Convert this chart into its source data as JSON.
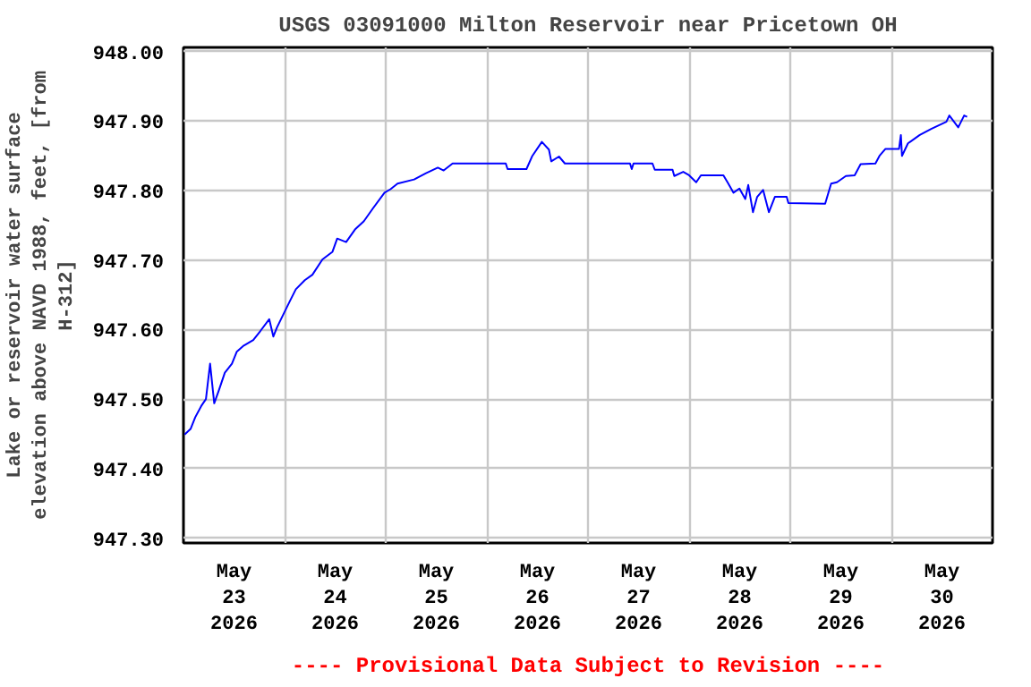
{
  "chart_data": {
    "type": "line",
    "title": "USGS 03091000 Milton Reservoir near Pricetown OH",
    "ylabel": "Lake or reservoir water surface\nelevation above NAVD 1988, feet, [from\nH-312]",
    "annotations": [
      "---- Provisional Data Subject to Revision ----"
    ],
    "xlim": [
      "2026-05-23T00:00",
      "2026-05-31T00:00"
    ],
    "xticks": [
      {
        "value": "2026-05-23T00:00",
        "label": null
      },
      {
        "value": "2026-05-23T12:00",
        "label": "May\n23\n2026"
      },
      {
        "value": "2026-05-24T00:00",
        "label": null
      },
      {
        "value": "2026-05-24T12:00",
        "label": "May\n24\n2026"
      },
      {
        "value": "2026-05-25T00:00",
        "label": null
      },
      {
        "value": "2026-05-25T12:00",
        "label": "May\n25\n2026"
      },
      {
        "value": "2026-05-26T00:00",
        "label": null
      },
      {
        "value": "2026-05-26T12:00",
        "label": "May\n26\n2026"
      },
      {
        "value": "2026-05-27T00:00",
        "label": null
      },
      {
        "value": "2026-05-27T12:00",
        "label": "May\n27\n2026"
      },
      {
        "value": "2026-05-28T00:00",
        "label": null
      },
      {
        "value": "2026-05-28T12:00",
        "label": "May\n28\n2026"
      },
      {
        "value": "2026-05-29T00:00",
        "label": null
      },
      {
        "value": "2026-05-29T12:00",
        "label": "May\n29\n2026"
      },
      {
        "value": "2026-05-30T00:00",
        "label": null
      },
      {
        "value": "2026-05-30T12:00",
        "label": "May\n30\n2026"
      },
      {
        "value": "2026-05-31T00:00",
        "label": null
      }
    ],
    "ylim": [
      947.293,
      948.006
    ],
    "yticks": [
      {
        "value": 947.3,
        "label": "947.30"
      },
      {
        "value": 947.4,
        "label": "947.40"
      },
      {
        "value": 947.5,
        "label": "947.50"
      },
      {
        "value": 947.6,
        "label": "947.60"
      },
      {
        "value": 947.7,
        "label": "947.70"
      },
      {
        "value": 947.8,
        "label": "947.80"
      },
      {
        "value": 947.9,
        "label": "947.90"
      },
      {
        "value": 948.0,
        "label": "948.00"
      }
    ],
    "grid": true,
    "marker": "none",
    "line_style": "solid",
    "series": [
      {
        "color": "#0000ff",
        "x": [
          "2026-05-23T00:17",
          "2026-05-23T01:41",
          "2026-05-23T02:48",
          "2026-05-23T04:13",
          "2026-05-23T05:20",
          "2026-05-23T06:19",
          "2026-05-23T07:18",
          "2026-05-23T08:25",
          "2026-05-23T09:49",
          "2026-05-23T11:30",
          "2026-05-23T12:38",
          "2026-05-23T14:19",
          "2026-05-23T16:34",
          "2026-05-23T18:15",
          "2026-05-23T20:21",
          "2026-05-23T21:20",
          "2026-05-23T22:11",
          "2026-05-23T23:52",
          "2026-05-24T01:15",
          "2026-05-24T02:40",
          "2026-05-24T04:47",
          "2026-05-24T06:36",
          "2026-05-24T08:59",
          "2026-05-24T11:22",
          "2026-05-24T12:29",
          "2026-05-24T14:36",
          "2026-05-24T16:42",
          "2026-05-24T18:49",
          "2026-05-24T20:55",
          "2026-05-24T23:43",
          "2026-05-25T01:08",
          "2026-05-25T02:48",
          "2026-05-25T06:44",
          "2026-05-25T09:33",
          "2026-05-25T12:22",
          "2026-05-25T13:45",
          "2026-05-25T15:52",
          "2026-05-26T04:29",
          "2026-05-26T04:55",
          "2026-05-26T09:24",
          "2026-05-26T10:48",
          "2026-05-26T13:03",
          "2026-05-26T14:44",
          "2026-05-26T15:17",
          "2026-05-26T17:07",
          "2026-05-26T18:31",
          "2026-05-27T00:00",
          "2026-05-27T09:58",
          "2026-05-27T10:23",
          "2026-05-27T10:48",
          "2026-05-27T15:18",
          "2026-05-27T15:51",
          "2026-05-27T20:04",
          "2026-05-27T20:29",
          "2026-05-27T22:36",
          "2026-05-28T00:00",
          "2026-05-28T01:41",
          "2026-05-28T02:48",
          "2026-05-28T08:08",
          "2026-05-28T09:07",
          "2026-05-28T10:32",
          "2026-05-28T11:56",
          "2026-05-28T13:20",
          "2026-05-28T14:02",
          "2026-05-28T15:09",
          "2026-05-28T16:09",
          "2026-05-28T17:33",
          "2026-05-28T18:56",
          "2026-05-28T20:21",
          "2026-05-28T23:09",
          "2026-05-28T23:34",
          "2026-05-29T08:17",
          "2026-05-29T09:42",
          "2026-05-29T11:05",
          "2026-05-29T13:12",
          "2026-05-29T15:17",
          "2026-05-29T16:42",
          "2026-05-29T20:13",
          "2026-05-29T21:11",
          "2026-05-29T22:36",
          "2026-05-30T01:49",
          "2026-05-30T02:15",
          "2026-05-30T02:31",
          "2026-05-30T03:56",
          "2026-05-30T06:44",
          "2026-05-30T09:33",
          "2026-05-30T13:03",
          "2026-05-30T13:45",
          "2026-05-30T15:52",
          "2026-05-30T17:16",
          "2026-05-30T17:58"
        ],
        "values": [
          947.449,
          947.457,
          947.474,
          947.49,
          947.5,
          947.551,
          947.494,
          947.513,
          947.538,
          947.551,
          947.568,
          947.577,
          947.585,
          947.598,
          947.615,
          947.59,
          947.603,
          947.624,
          947.641,
          947.658,
          947.671,
          947.679,
          947.701,
          947.712,
          947.731,
          947.726,
          947.744,
          947.756,
          947.774,
          947.797,
          947.802,
          947.81,
          947.816,
          947.825,
          947.833,
          947.829,
          947.839,
          947.839,
          947.831,
          947.831,
          947.85,
          947.87,
          947.859,
          947.842,
          947.849,
          947.839,
          947.839,
          947.839,
          947.831,
          947.839,
          947.839,
          947.83,
          947.83,
          947.821,
          947.827,
          947.822,
          947.812,
          947.822,
          947.822,
          947.812,
          947.797,
          947.803,
          947.788,
          947.808,
          947.769,
          947.791,
          947.801,
          947.769,
          947.791,
          947.791,
          947.782,
          947.781,
          947.81,
          947.812,
          947.821,
          947.822,
          947.838,
          947.839,
          947.85,
          947.86,
          947.86,
          947.88,
          947.85,
          947.868,
          947.88,
          947.889,
          947.899,
          947.908,
          947.891,
          947.908,
          947.906
        ]
      }
    ]
  }
}
